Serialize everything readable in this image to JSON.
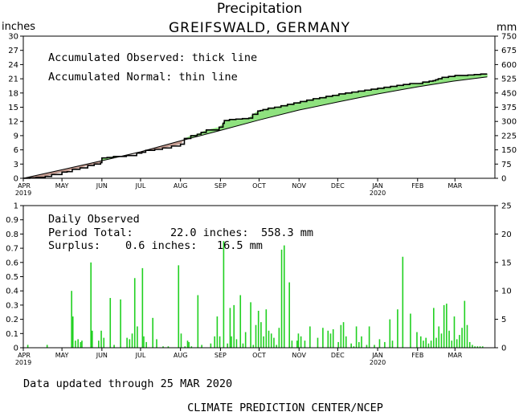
{
  "title": "Precipitation",
  "subtitle": "GREIFSWALD, GERMANY",
  "footer": {
    "updated": "Data updated through 25 MAR 2020",
    "credit": "CLIMATE PREDICTION CENTER/NCEP"
  },
  "colors": {
    "deficit": "#c49b90",
    "surplus": "#8fe27f",
    "daily_bar": "#20d020",
    "axes": "#000000"
  },
  "chart_data": [
    {
      "id": "accumulated",
      "type": "area",
      "title": "",
      "ylabel_left": "inches",
      "ylabel_right": "mm",
      "ylim": [
        0,
        30
      ],
      "yticks_left": [
        "0",
        "3",
        "6",
        "9",
        "12",
        "15",
        "18",
        "21",
        "24",
        "27",
        "30"
      ],
      "yticks_right": [
        "0",
        "75",
        "150",
        "225",
        "300",
        "375",
        "450",
        "525",
        "600",
        "675",
        "750"
      ],
      "x_ticks": [
        "APR",
        "MAY",
        "JUN",
        "JUL",
        "AUG",
        "SEP",
        "OCT",
        "NOV",
        "DEC",
        "JAN",
        "FEB",
        "MAR"
      ],
      "x_year_labels": [
        {
          "month": "APR",
          "year": "2019"
        },
        {
          "month": "JAN",
          "year": "2020"
        }
      ],
      "annotations": [
        "Accumulated Observed: thick line",
        "Accumulated Normal: thin line"
      ],
      "grid": false,
      "series": [
        {
          "name": "Accumulated Observed",
          "x": [
            0,
            5,
            10,
            17,
            22,
            30,
            34,
            38,
            44,
            50,
            55,
            60,
            61,
            65,
            70,
            75,
            80,
            88,
            92,
            95,
            102,
            108,
            115,
            122,
            125,
            130,
            135,
            138,
            142,
            152,
            155,
            156,
            160,
            165,
            170,
            175,
            178,
            182,
            184,
            186,
            190,
            195,
            200,
            205,
            210,
            215,
            220,
            225,
            230,
            235,
            240,
            245,
            250,
            255,
            260,
            265,
            270,
            275,
            280,
            285,
            290,
            295,
            300,
            305,
            310,
            315,
            318,
            320,
            322,
            325,
            330,
            335,
            340,
            345,
            350,
            355,
            360
          ],
          "values": [
            0.0,
            0.1,
            0.2,
            0.4,
            0.8,
            1.3,
            1.4,
            1.9,
            2.2,
            2.7,
            3.0,
            3.3,
            4.3,
            4.4,
            4.6,
            4.6,
            4.8,
            5.3,
            5.5,
            5.9,
            6.1,
            6.4,
            6.8,
            7.2,
            8.4,
            9.0,
            9.3,
            9.7,
            10.2,
            10.8,
            11.6,
            12.2,
            12.4,
            12.5,
            12.6,
            12.7,
            13.5,
            14.2,
            14.3,
            14.5,
            14.8,
            15.0,
            15.3,
            15.6,
            15.9,
            16.2,
            16.5,
            16.8,
            17.0,
            17.3,
            17.5,
            17.8,
            18.0,
            18.2,
            18.4,
            18.6,
            18.8,
            19.0,
            19.2,
            19.4,
            19.6,
            19.8,
            20.0,
            20.0,
            20.3,
            20.5,
            20.6,
            20.8,
            21.0,
            21.3,
            21.5,
            21.7,
            21.7,
            21.8,
            21.9,
            22.0,
            22.0
          ]
        },
        {
          "name": "Accumulated Normal",
          "x": [
            0,
            30,
            61,
            91,
            122,
            153,
            183,
            214,
            244,
            275,
            306,
            334,
            360
          ],
          "values": [
            0.0,
            1.8,
            3.7,
            5.6,
            7.9,
            10.1,
            12.3,
            14.4,
            16.1,
            17.8,
            19.3,
            20.5,
            21.4
          ]
        }
      ]
    },
    {
      "id": "daily",
      "type": "bar",
      "title": "",
      "ylabel_left": "",
      "ylabel_right": "",
      "ylim": [
        0,
        1
      ],
      "yticks_left": [
        "0",
        "0.1",
        "0.2",
        "0.3",
        "0.4",
        "0.5",
        "0.6",
        "0.7",
        "0.8",
        "0.9",
        "1"
      ],
      "yticks_right": [
        "0",
        "5",
        "10",
        "15",
        "20",
        "25"
      ],
      "x_ticks": [
        "APR",
        "MAY",
        "JUN",
        "JUL",
        "AUG",
        "SEP",
        "OCT",
        "NOV",
        "DEC",
        "JAN",
        "FEB",
        "MAR"
      ],
      "x_year_labels": [
        {
          "month": "APR",
          "year": "2019"
        },
        {
          "month": "JAN",
          "year": "2020"
        }
      ],
      "annotations": {
        "heading": "Daily Observed",
        "total_label": "Period Total:",
        "total_inches": "22.0 inches:",
        "total_mm": "558.3 mm",
        "surplus_label": "Surplus:",
        "surplus_inches": "0.6 inches:",
        "surplus_mm": "16.5 mm"
      },
      "grid": false,
      "series": [
        {
          "name": "Daily Observed",
          "x": [
            3,
            18,
            37,
            38,
            40,
            42,
            44,
            45,
            52,
            53,
            58,
            60,
            62,
            67,
            70,
            75,
            80,
            82,
            84,
            86,
            88,
            92,
            93,
            95,
            100,
            103,
            108,
            112,
            120,
            122,
            125,
            127,
            128,
            130,
            135,
            138,
            145,
            148,
            150,
            152,
            155,
            158,
            160,
            161,
            163,
            165,
            168,
            170,
            172,
            176,
            178,
            180,
            182,
            184,
            186,
            188,
            190,
            192,
            194,
            196,
            198,
            200,
            202,
            206,
            208,
            212,
            213,
            215,
            218,
            222,
            228,
            232,
            236,
            238,
            240,
            244,
            246,
            248,
            250,
            254,
            256,
            258,
            260,
            262,
            266,
            268,
            272,
            276,
            280,
            284,
            286,
            290,
            294,
            300,
            305,
            308,
            310,
            312,
            314,
            316,
            318,
            320,
            322,
            324,
            326,
            328,
            330,
            332,
            334,
            336,
            338,
            340,
            342,
            344,
            346,
            348,
            350,
            352,
            354,
            356
          ],
          "values": [
            0.02,
            0.02,
            0.4,
            0.22,
            0.05,
            0.06,
            0.04,
            0.05,
            0.6,
            0.12,
            0.05,
            0.12,
            0.07,
            0.35,
            0.02,
            0.34,
            0.07,
            0.06,
            0.1,
            0.49,
            0.15,
            0.56,
            0.08,
            0.04,
            0.21,
            0.06,
            0.01,
            0.01,
            0.58,
            0.1,
            0.01,
            0.05,
            0.04,
            0.01,
            0.37,
            0.02,
            0.03,
            0.08,
            0.22,
            0.08,
            0.75,
            0.03,
            0.28,
            0.08,
            0.3,
            0.06,
            0.37,
            0.03,
            0.11,
            0.32,
            0.02,
            0.16,
            0.26,
            0.18,
            0.08,
            0.27,
            0.12,
            0.1,
            0.07,
            0.02,
            0.14,
            0.69,
            0.72,
            0.46,
            0.05,
            0.05,
            0.1,
            0.08,
            0.05,
            0.15,
            0.07,
            0.14,
            0.12,
            0.1,
            0.13,
            0.04,
            0.16,
            0.18,
            0.08,
            0.03,
            0.01,
            0.15,
            0.04,
            0.08,
            0.02,
            0.15,
            0.02,
            0.06,
            0.04,
            0.2,
            0.05,
            0.27,
            0.64,
            0.24,
            0.11,
            0.08,
            0.05,
            0.07,
            0.03,
            0.05,
            0.28,
            0.07,
            0.15,
            0.1,
            0.3,
            0.31,
            0.12,
            0.05,
            0.22,
            0.06,
            0.09,
            0.14,
            0.33,
            0.16,
            0.04,
            0.02,
            0.01,
            0.01,
            0.01,
            0.01
          ]
        }
      ]
    }
  ]
}
